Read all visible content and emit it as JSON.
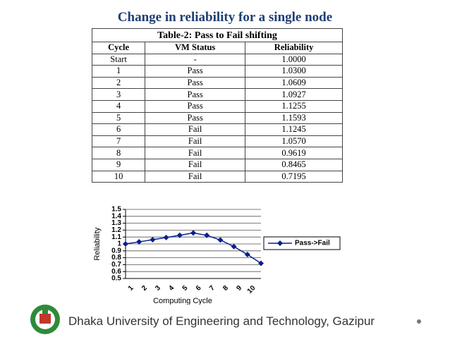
{
  "title": "Change in reliability for a single node",
  "table": {
    "caption": "Table-2: Pass to Fail shifting",
    "header": [
      "Cycle",
      "VM Status",
      "Reliability"
    ],
    "rows": [
      [
        "Start",
        "-",
        "1.0000"
      ],
      [
        "1",
        "Pass",
        "1.0300"
      ],
      [
        "2",
        "Pass",
        "1.0609"
      ],
      [
        "3",
        "Pass",
        "1.0927"
      ],
      [
        "4",
        "Pass",
        "1.1255"
      ],
      [
        "5",
        "Pass",
        "1.1593"
      ],
      [
        "6",
        "Fail",
        "1.1245"
      ],
      [
        "7",
        "Fail",
        "1.0570"
      ],
      [
        "8",
        "Fail",
        "0.9619"
      ],
      [
        "9",
        "Fail",
        "0.8465"
      ],
      [
        "10",
        "Fail",
        "0.7195"
      ]
    ]
  },
  "chart_data": {
    "type": "line",
    "y_label": "Reliability",
    "x_label": "Computing Cycle",
    "categories": [
      1,
      2,
      3,
      4,
      5,
      6,
      7,
      8,
      9,
      10,
      null
    ],
    "series": [
      {
        "name": "Pass->Fail",
        "color": "#0a1f8f",
        "values": [
          1.0,
          1.03,
          1.0609,
          1.0927,
          1.1255,
          1.1593,
          1.1245,
          1.057,
          0.9619,
          0.8465,
          0.7195
        ]
      }
    ],
    "ylim": [
      0.5,
      1.5
    ],
    "yticks": [
      0.5,
      0.6,
      0.7,
      0.8,
      0.9,
      1,
      1.1,
      1.2,
      1.3,
      1.4,
      1.5
    ],
    "grid": true,
    "legend": "right"
  },
  "footer": "Dhaka University of Engineering and Technology, Gazipur"
}
